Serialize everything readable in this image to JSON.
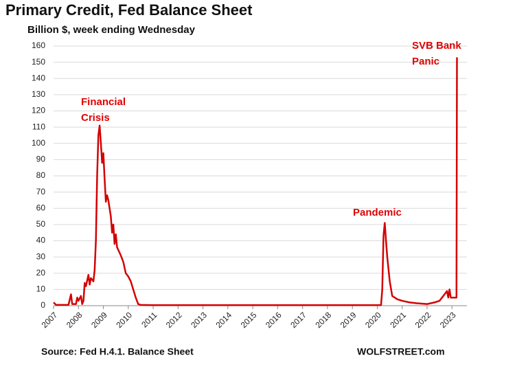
{
  "chart_data": {
    "type": "line",
    "title": "Primary Credit, Fed Balance Sheet",
    "subtitle": "Billion $, week ending Wednesday",
    "source": "Source: Fed H.4.1. Balance Sheet",
    "credit": "WOLFSTREET.com",
    "annotations": [
      [
        "Financial",
        "Crisis"
      ],
      [
        "Pandemic"
      ],
      [
        "SVB Bank",
        "Panic"
      ]
    ],
    "xlim": [
      2007,
      2023.6
    ],
    "xticks": [
      2007,
      2008,
      2009,
      2010,
      2011,
      2012,
      2013,
      2014,
      2015,
      2016,
      2017,
      2018,
      2019,
      2020,
      2021,
      2022,
      2023
    ],
    "ylim": [
      0,
      160
    ],
    "yticks": [
      0,
      10,
      20,
      30,
      40,
      50,
      60,
      70,
      80,
      90,
      100,
      110,
      120,
      130,
      140,
      150,
      160
    ],
    "grid": true,
    "series": [
      {
        "name": "Primary Credit",
        "color": "#d40000",
        "x": [
          2007.0,
          2007.1,
          2007.6,
          2007.7,
          2007.75,
          2007.9,
          2007.95,
          2008.0,
          2008.1,
          2008.15,
          2008.2,
          2008.25,
          2008.3,
          2008.4,
          2008.45,
          2008.5,
          2008.6,
          2008.65,
          2008.7,
          2008.75,
          2008.8,
          2008.85,
          2008.9,
          2008.95,
          2009.0,
          2009.05,
          2009.1,
          2009.15,
          2009.2,
          2009.3,
          2009.35,
          2009.4,
          2009.45,
          2009.5,
          2009.55,
          2009.7,
          2009.8,
          2009.9,
          2010.0,
          2010.1,
          2010.2,
          2010.3,
          2010.4,
          2010.5,
          2011.0,
          2015.0,
          2020.15,
          2020.2,
          2020.25,
          2020.3,
          2020.35,
          2020.4,
          2020.5,
          2020.6,
          2020.8,
          2021.0,
          2021.3,
          2021.6,
          2022.0,
          2022.3,
          2022.5,
          2022.6,
          2022.7,
          2022.8,
          2022.85,
          2022.9,
          2022.95,
          2023.1,
          2023.18,
          2023.2
        ],
        "values": [
          2,
          0.5,
          0.5,
          7,
          1,
          1,
          5,
          3,
          6,
          1,
          3,
          14,
          12,
          19,
          13,
          17,
          15,
          22,
          40,
          80,
          105,
          111,
          100,
          88,
          94,
          78,
          64,
          68,
          65,
          55,
          45,
          50,
          38,
          44,
          36,
          31,
          27,
          20,
          18,
          15,
          10,
          5,
          1,
          0.5,
          0.3,
          0.3,
          0.3,
          10,
          43,
          51,
          40,
          30,
          15,
          6,
          4,
          3,
          2,
          1.5,
          1,
          2,
          3,
          5,
          7,
          9,
          5,
          10,
          5,
          5,
          5,
          153
        ]
      }
    ]
  }
}
